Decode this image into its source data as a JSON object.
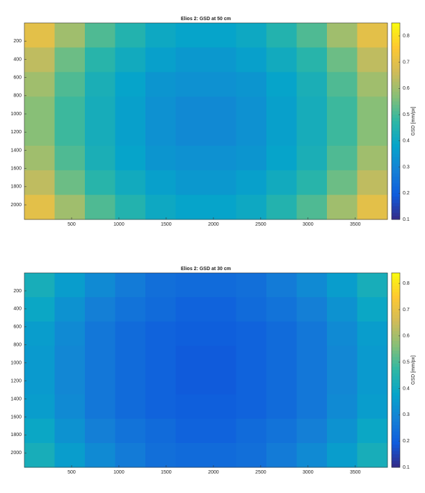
{
  "chart_data": [
    {
      "type": "heatmap",
      "title": "Elios 2: GSD at 50 cm",
      "x": [
        160,
        480,
        800,
        1120,
        1440,
        1760,
        2080,
        2400,
        2720,
        3040,
        3360,
        3680
      ],
      "y": [
        135,
        405,
        675,
        945,
        1215,
        1485,
        1755,
        2025
      ],
      "z": [
        [
          0.7,
          0.6,
          0.51,
          0.45,
          0.4,
          0.38,
          0.38,
          0.4,
          0.45,
          0.51,
          0.6,
          0.7
        ],
        [
          0.64,
          0.54,
          0.46,
          0.41,
          0.37,
          0.35,
          0.35,
          0.37,
          0.41,
          0.46,
          0.54,
          0.64
        ],
        [
          0.6,
          0.51,
          0.43,
          0.38,
          0.34,
          0.33,
          0.33,
          0.34,
          0.38,
          0.43,
          0.51,
          0.6
        ],
        [
          0.57,
          0.49,
          0.42,
          0.37,
          0.33,
          0.31,
          0.31,
          0.33,
          0.37,
          0.42,
          0.49,
          0.57
        ],
        [
          0.57,
          0.49,
          0.42,
          0.37,
          0.33,
          0.31,
          0.31,
          0.33,
          0.37,
          0.42,
          0.49,
          0.57
        ],
        [
          0.6,
          0.51,
          0.43,
          0.38,
          0.34,
          0.33,
          0.33,
          0.34,
          0.38,
          0.43,
          0.51,
          0.6
        ],
        [
          0.64,
          0.54,
          0.46,
          0.41,
          0.37,
          0.35,
          0.35,
          0.37,
          0.41,
          0.46,
          0.54,
          0.64
        ],
        [
          0.7,
          0.6,
          0.51,
          0.45,
          0.4,
          0.38,
          0.38,
          0.4,
          0.45,
          0.51,
          0.6,
          0.7
        ]
      ],
      "xlim": [
        0,
        3840
      ],
      "ylim": [
        0,
        2160
      ],
      "y_direction": "reverse",
      "xticks": [
        500,
        1000,
        1500,
        2000,
        2500,
        3000,
        3500
      ],
      "yticks": [
        200,
        400,
        600,
        800,
        1000,
        1200,
        1400,
        1600,
        1800,
        2000
      ],
      "clim": [
        0.1,
        0.85
      ],
      "cticks": [
        0.1,
        0.2,
        0.3,
        0.4,
        0.5,
        0.6,
        0.7,
        0.8
      ],
      "colorbar_label": "GSD [mm/px]",
      "colormap": [
        "#352a87",
        "#0f5cdd",
        "#1481d6",
        "#06a4ca",
        "#2eb7a4",
        "#87bf77",
        "#d1bb59",
        "#fec832",
        "#f9fb0e"
      ]
    },
    {
      "type": "heatmap",
      "title": "Elios 2: GSD at 30 cm",
      "x": [
        160,
        480,
        800,
        1120,
        1440,
        1760,
        2080,
        2400,
        2720,
        3040,
        3360,
        3680
      ],
      "y": [
        135,
        405,
        675,
        945,
        1215,
        1485,
        1755,
        2025
      ],
      "z": [
        [
          0.42,
          0.36,
          0.31,
          0.27,
          0.24,
          0.23,
          0.23,
          0.24,
          0.27,
          0.31,
          0.36,
          0.42
        ],
        [
          0.39,
          0.33,
          0.28,
          0.25,
          0.23,
          0.21,
          0.21,
          0.23,
          0.25,
          0.28,
          0.33,
          0.39
        ],
        [
          0.36,
          0.31,
          0.26,
          0.23,
          0.21,
          0.2,
          0.2,
          0.21,
          0.23,
          0.26,
          0.31,
          0.36
        ],
        [
          0.35,
          0.3,
          0.26,
          0.23,
          0.21,
          0.19,
          0.19,
          0.21,
          0.23,
          0.26,
          0.3,
          0.35
        ],
        [
          0.35,
          0.3,
          0.26,
          0.23,
          0.21,
          0.19,
          0.19,
          0.21,
          0.23,
          0.26,
          0.3,
          0.35
        ],
        [
          0.36,
          0.31,
          0.26,
          0.23,
          0.21,
          0.2,
          0.2,
          0.21,
          0.23,
          0.26,
          0.31,
          0.36
        ],
        [
          0.39,
          0.33,
          0.28,
          0.25,
          0.23,
          0.21,
          0.21,
          0.23,
          0.25,
          0.28,
          0.33,
          0.39
        ],
        [
          0.42,
          0.36,
          0.31,
          0.27,
          0.24,
          0.23,
          0.23,
          0.24,
          0.27,
          0.31,
          0.36,
          0.42
        ]
      ],
      "xlim": [
        0,
        3840
      ],
      "ylim": [
        0,
        2160
      ],
      "y_direction": "reverse",
      "xticks": [
        500,
        1000,
        1500,
        2000,
        2500,
        3000,
        3500
      ],
      "yticks": [
        200,
        400,
        600,
        800,
        1000,
        1200,
        1400,
        1600,
        1800,
        2000
      ],
      "clim": [
        0.1,
        0.84
      ],
      "cticks": [
        0.1,
        0.2,
        0.3,
        0.4,
        0.5,
        0.6,
        0.7,
        0.8
      ],
      "colorbar_label": "GSD [mm/px]",
      "colormap": [
        "#352a87",
        "#0f5cdd",
        "#1481d6",
        "#06a4ca",
        "#2eb7a4",
        "#87bf77",
        "#d1bb59",
        "#fec832",
        "#f9fb0e"
      ]
    }
  ]
}
